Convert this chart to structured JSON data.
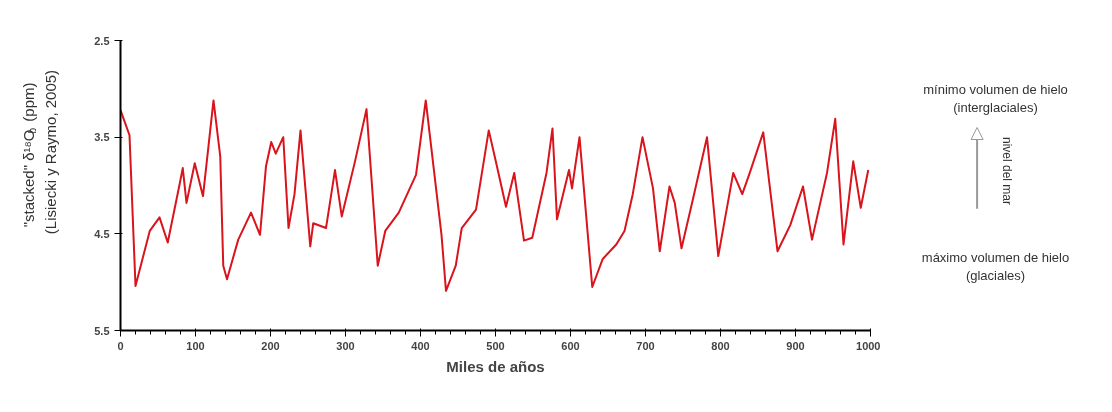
{
  "chart_data": {
    "type": "line",
    "xlabel": "Miles de años",
    "ylabel": "\"stacked\" δ¹⁸O$_{b}$ (ppm)\n(Lisiecki y Raymo, 2005)",
    "annotations": [
      "mínimo volumen de hielo\n(interglaciales)",
      "nivel del mar",
      "máximo volumen de hielo\n(glaciales)"
    ],
    "x": [
      0,
      12,
      20,
      39,
      52,
      63,
      79,
      83,
      88,
      99,
      110,
      124,
      133,
      137,
      142,
      157,
      174,
      186,
      194,
      201,
      207,
      217,
      224,
      232,
      240,
      253,
      257,
      274,
      286,
      295,
      313,
      328,
      343,
      353,
      371,
      394,
      407,
      428,
      434,
      447,
      455,
      474,
      491,
      501,
      514,
      525,
      538,
      549,
      568,
      576,
      582,
      598,
      602,
      612,
      629,
      643,
      661,
      672,
      683,
      696,
      710,
      719,
      732,
      739,
      748,
      763,
      782,
      797,
      817,
      829,
      839,
      857,
      876,
      893,
      910,
      922,
      942,
      953,
      964,
      977,
      987,
      997
    ],
    "series": [
      {
        "color": "#d9141c",
        "values": [
          3.22,
          3.48,
          5.04,
          4.47,
          4.33,
          4.59,
          3.98,
          3.82,
          4.18,
          3.77,
          4.11,
          3.12,
          3.7,
          4.83,
          4.97,
          4.56,
          4.28,
          4.51,
          3.8,
          3.55,
          3.67,
          3.5,
          4.44,
          4.09,
          3.43,
          4.63,
          4.39,
          4.44,
          3.84,
          4.32,
          3.74,
          3.21,
          4.83,
          4.47,
          4.28,
          3.89,
          3.12,
          4.51,
          5.09,
          4.83,
          4.44,
          4.25,
          3.43,
          3.77,
          4.22,
          3.87,
          4.57,
          4.54,
          3.87,
          3.41,
          4.35,
          3.84,
          4.03,
          3.5,
          5.05,
          4.76,
          4.61,
          4.47,
          4.09,
          3.5,
          4.03,
          4.68,
          4.01,
          4.18,
          4.65,
          4.15,
          3.5,
          4.73,
          3.87,
          4.09,
          3.87,
          3.45,
          4.68,
          4.41,
          4.01,
          4.56,
          3.87,
          3.31,
          4.61,
          3.75,
          4.23,
          3.84
        ]
      }
    ],
    "xlim": [
      0,
      1000
    ],
    "xticks": [
      0,
      100,
      200,
      300,
      400,
      500,
      600,
      700,
      800,
      900,
      1000
    ],
    "ylim": [
      5.5,
      2.5
    ],
    "yticks": [
      2.5,
      3.5,
      4.5,
      5.5
    ],
    "grid": false,
    "marker": "none",
    "line_style": "solid"
  }
}
